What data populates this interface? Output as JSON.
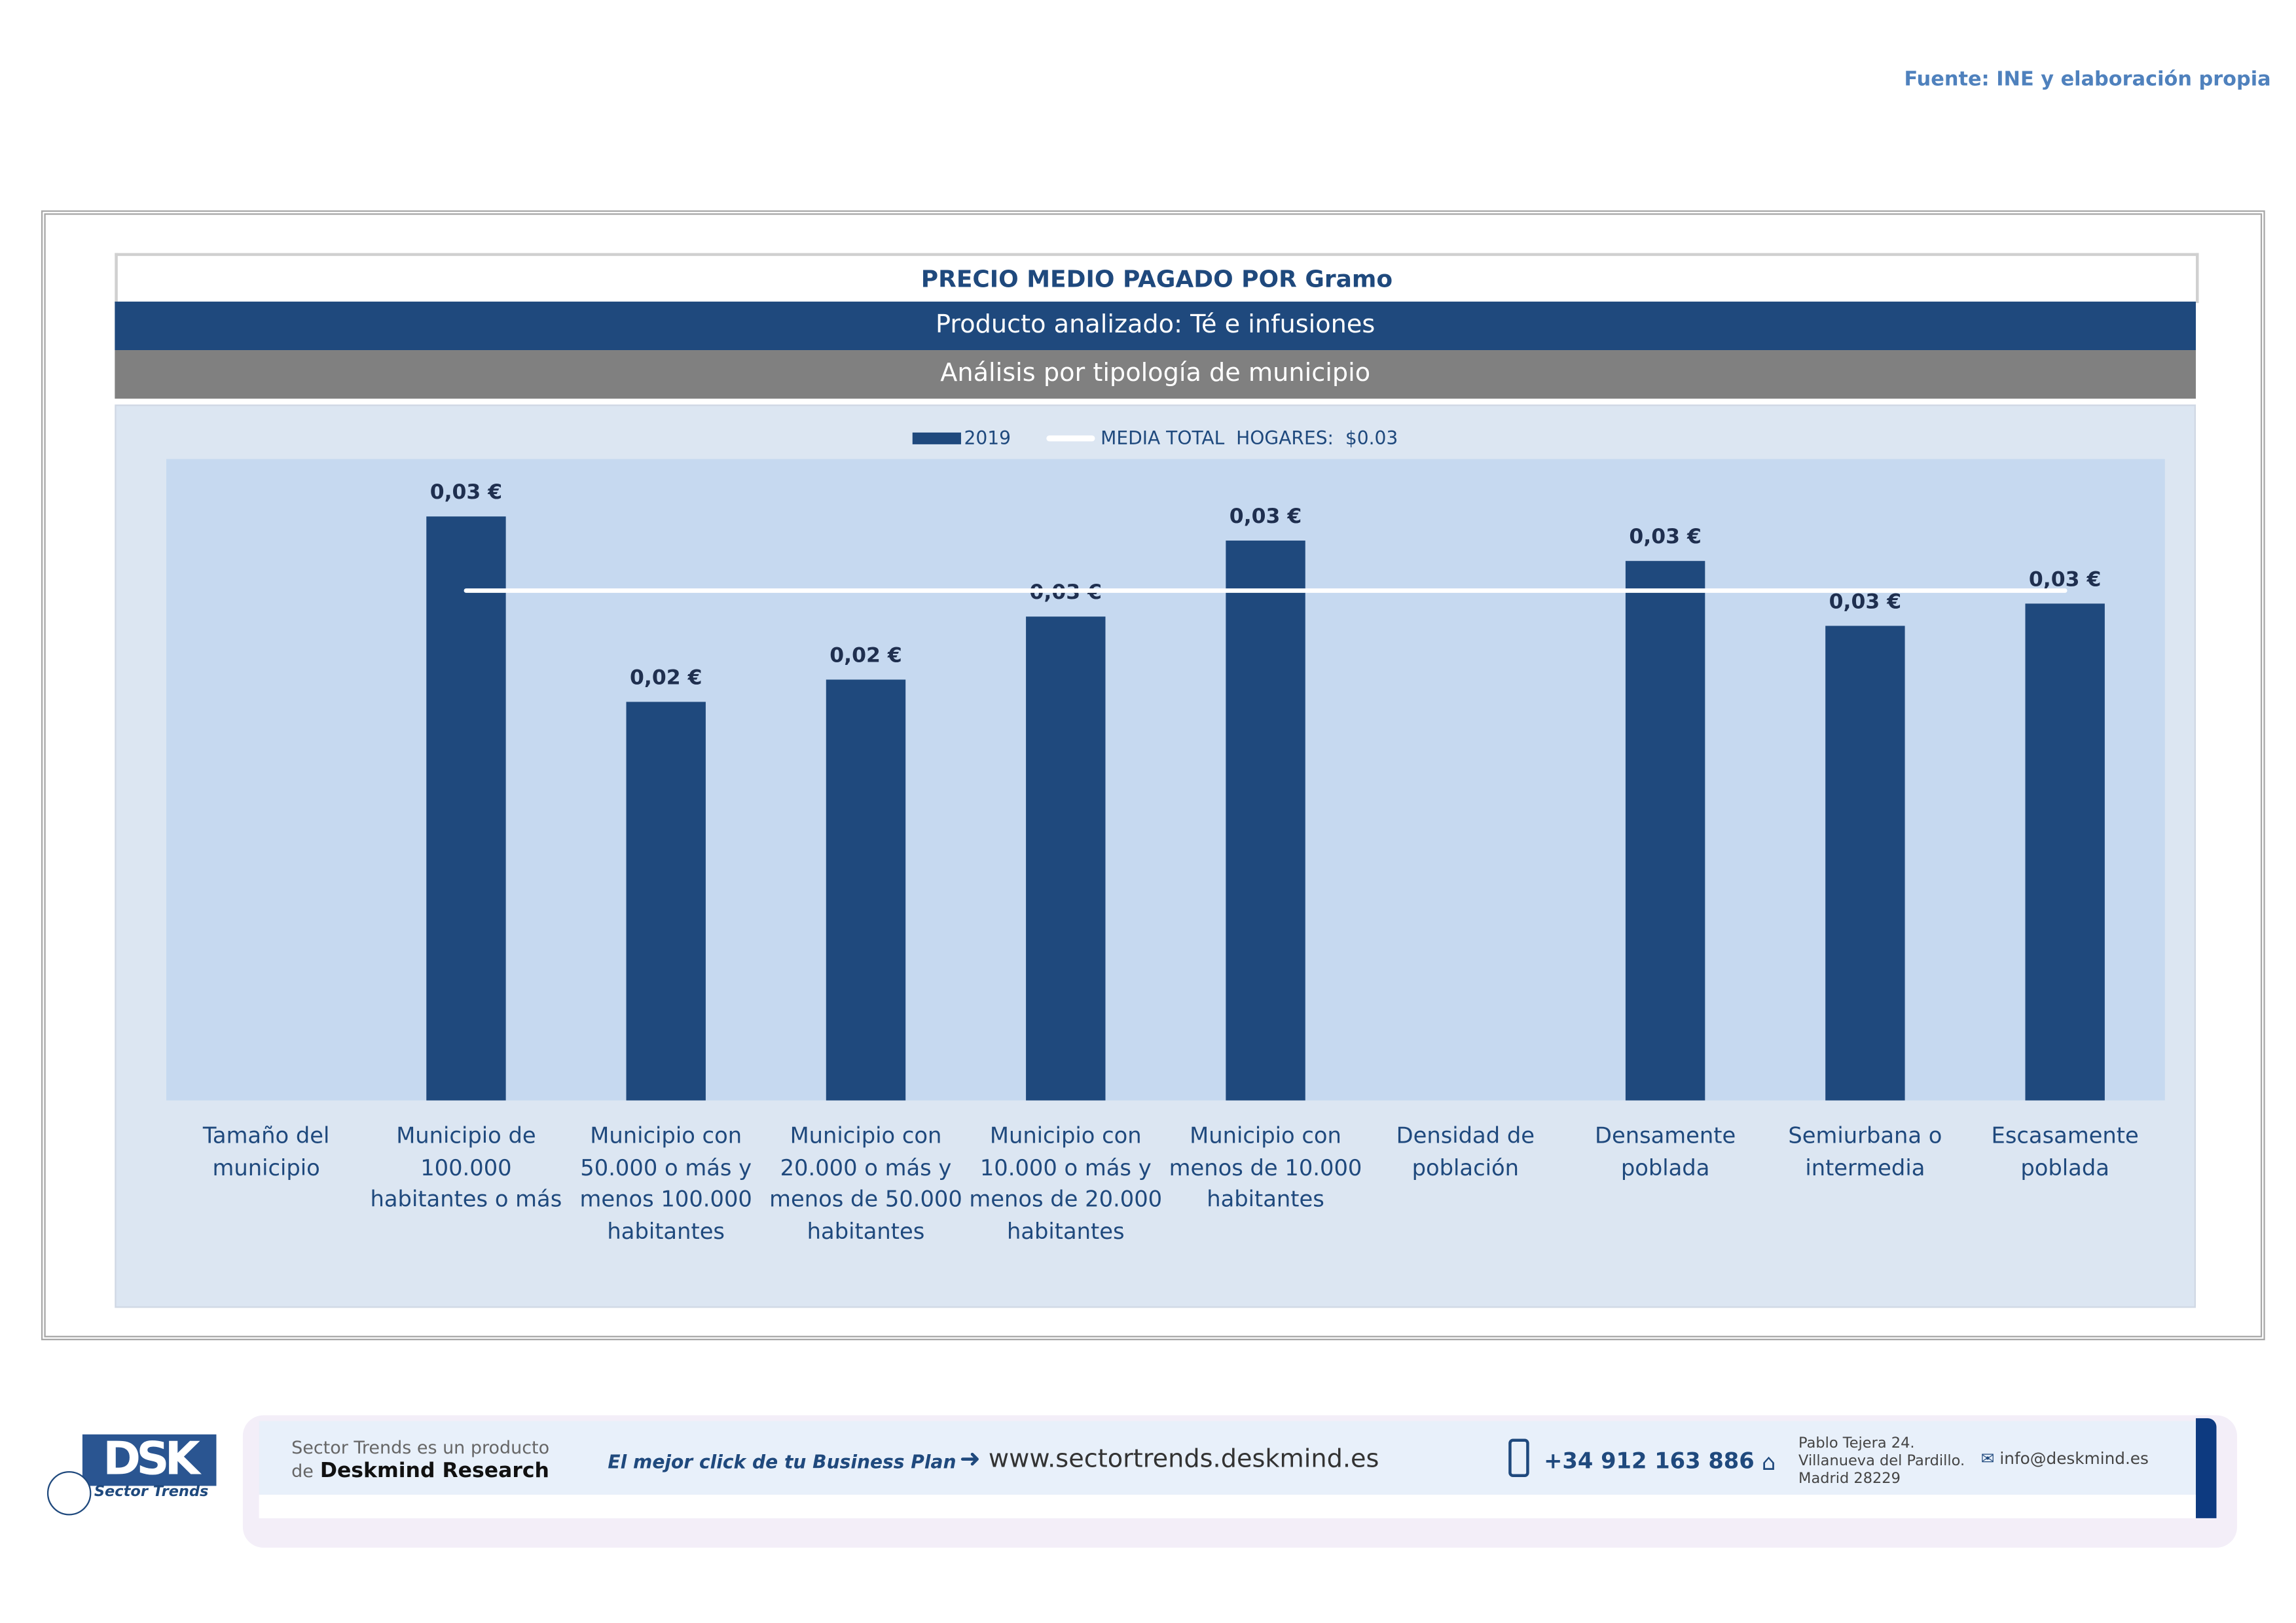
{
  "source": "Fuente: INE y elaboración propia",
  "header": {
    "title": "PRECIO MEDIO PAGADO POR Gramo",
    "product": "Producto analizado: Té e infusiones",
    "analysis": "Análisis por tipología de municipio"
  },
  "colors": {
    "bar": "#1f497d",
    "plot_bg": "#c6d9f0",
    "chart_bg": "#dce6f2",
    "mean_line": "#ffffff"
  },
  "chart_data": {
    "type": "bar",
    "title": "PRECIO MEDIO PAGADO POR Gramo",
    "legend": {
      "position": "top",
      "series_label": "2019",
      "mean_label": "MEDIA TOTAL  HOGARES:  $0.03"
    },
    "categories": [
      "Tamaño del municipio",
      "Municipio de 100.000 habitantes o más",
      "Municipio con 50.000 o más y menos 100.000 habitantes",
      "Municipio con 20.000 o más y menos de 50.000 habitantes",
      "Municipio con 10.000 o más y menos de 20.000 habitantes",
      "Municipio con menos de 10.000 habitantes",
      "Densidad de población",
      "Densamente poblada",
      "Semiurbana o intermedia",
      "Escasamente poblada"
    ],
    "series": [
      {
        "name": "2019",
        "values": [
          null,
          0.0315,
          0.0215,
          0.0227,
          0.0261,
          0.0302,
          null,
          0.0291,
          0.0256,
          0.0268
        ],
        "labels": [
          null,
          "0,03 €",
          "0,02 €",
          "0,02 €",
          "0,03 €",
          "0,03 €",
          null,
          "0,03 €",
          "0,03 €",
          "0,03 €"
        ]
      }
    ],
    "mean": 0.0275,
    "ylim": [
      0,
      0.0346
    ],
    "grid": false
  },
  "footer": {
    "line1": "Sector Trends es un producto",
    "line2_prefix": "de",
    "line2_brand": "Deskmind Research",
    "slogan": "El mejor click de tu Business Plan",
    "website": "www.sectortrends.deskmind.es",
    "phone": "+34 912 163 886",
    "address1": "Pablo Tejera 24.",
    "address2": "Villanueva del Pardillo.",
    "address3": "Madrid 28229",
    "email": "info@deskmind.es",
    "logo_text": "DSK",
    "logo_sub": "Sector Trends"
  }
}
